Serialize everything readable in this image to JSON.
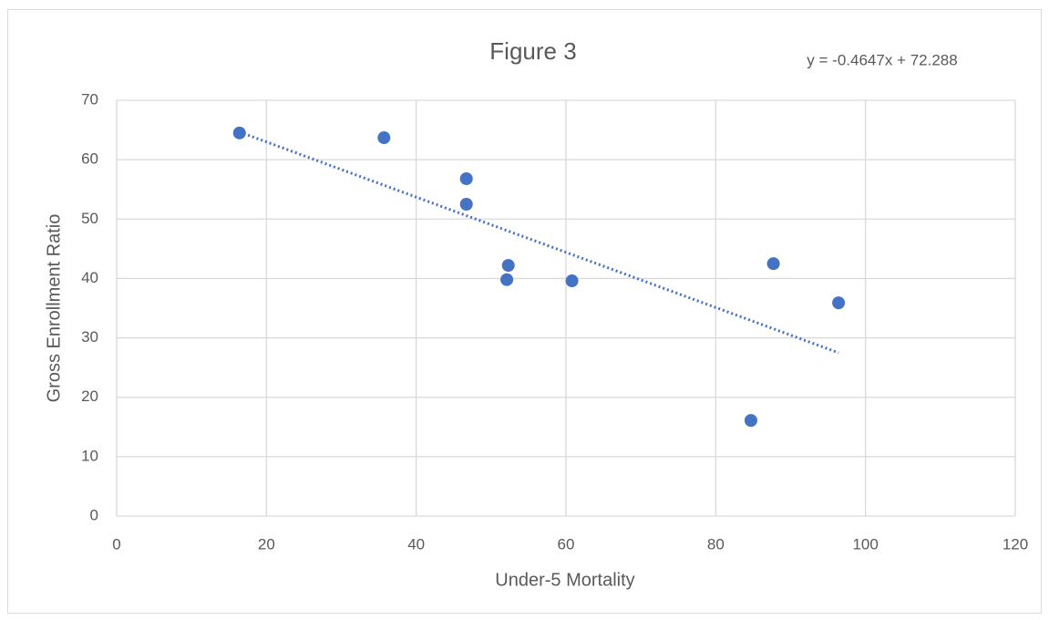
{
  "chart_data": {
    "type": "scatter",
    "title": "Figure 3",
    "xlabel": "Under-5 Mortality",
    "ylabel": "Gross Enrollment Ratio",
    "color": "#4472c4",
    "x": [
      16.4,
      35.7,
      46.7,
      46.7,
      52.3,
      52.1,
      60.8,
      87.7,
      96.4,
      84.7
    ],
    "values": [
      64.5,
      63.7,
      56.8,
      52.5,
      42.2,
      39.8,
      39.6,
      42.5,
      35.9,
      16.1
    ],
    "xlim": [
      0,
      120
    ],
    "xticks": [
      0,
      20,
      40,
      60,
      80,
      100,
      120
    ],
    "ylim": [
      0,
      70
    ],
    "yticks": [
      0,
      10,
      20,
      30,
      40,
      50,
      60,
      70
    ],
    "grid": true,
    "trendline": {
      "label": "y = -0.4647x + 72.288",
      "slope": -0.4647,
      "intercept": 72.288
    }
  }
}
